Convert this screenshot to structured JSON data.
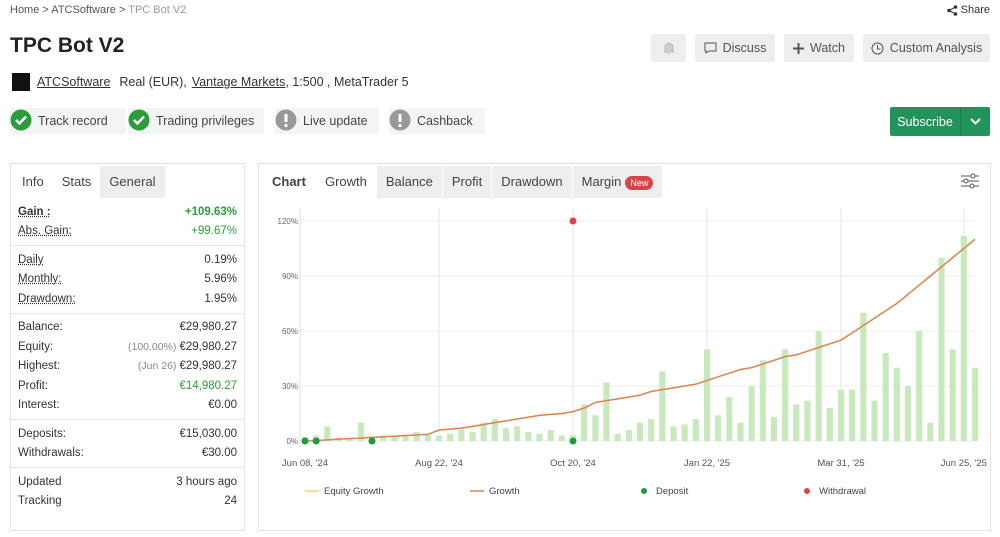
{
  "breadcrumb": [
    "Home",
    "ATCSoftware",
    "TPC Bot V2"
  ],
  "breadcrumb_separator": ">",
  "share": "Share",
  "title": "TPC Bot V2",
  "buttons": [
    "Discuss",
    "Watch",
    "Custom Analysis"
  ],
  "info_line": {
    "owner": "ATCSoftware",
    "account": "Real (EUR),",
    "broker": "Vantage Markets",
    "rest": ", 1:500 , MetaTrader 5"
  },
  "badges": [
    {
      "label": "Track record",
      "ok": true
    },
    {
      "label": "Trading privileges",
      "ok": true
    },
    {
      "label": "Live update",
      "ok": false
    },
    {
      "label": "Cashback",
      "ok": false
    }
  ],
  "subscribe": "Subscribe",
  "left_tabs": [
    "Info",
    "Stats",
    "General"
  ],
  "stats": [
    [
      {
        "label": "Gain :",
        "value": "+109.63%",
        "color": "#2a9d3a",
        "bold": true
      },
      {
        "label": "Abs. Gain:",
        "value": "+99.67%",
        "color": "#2a9d3a"
      }
    ],
    [
      {
        "label": "Daily",
        "value": "0.19%"
      },
      {
        "label": "Monthly:",
        "value": "5.96%"
      },
      {
        "label": "Drawdown:",
        "value": "1.95%"
      }
    ],
    [
      {
        "label": "Balance:",
        "value": "€29,980.27"
      },
      {
        "label": "Equity:",
        "note": "(100.00%)",
        "value": "€29,980.27"
      },
      {
        "label": "Highest:",
        "note": "(Jun 26)",
        "value": "€29,980.27"
      },
      {
        "label": "Profit:",
        "value": "€14,980.27",
        "color": "#2a9d3a"
      },
      {
        "label": "Interest:",
        "value": "€0.00"
      }
    ],
    [
      {
        "label": "Deposits:",
        "value": "€15,030.00"
      },
      {
        "label": "Withdrawals:",
        "value": "€30.00"
      }
    ],
    [
      {
        "label": "Updated",
        "value": "3 hours ago"
      },
      {
        "label": "Tracking",
        "value": "24"
      }
    ]
  ],
  "chart_tabs": [
    "Chart",
    "Growth",
    "Balance",
    "Profit",
    "Drawdown",
    "Margin"
  ],
  "new_badge": "New",
  "chart_data": {
    "type": "combo",
    "categories": [
      "Jun 08, '24",
      null,
      null,
      null,
      null,
      null,
      null,
      null,
      null,
      null,
      null,
      null,
      "Aug 22, '24",
      null,
      null,
      null,
      null,
      null,
      null,
      null,
      null,
      null,
      null,
      null,
      "Oct 20, '24",
      null,
      null,
      null,
      null,
      null,
      null,
      null,
      null,
      null,
      null,
      null,
      "Jan 22, '25",
      null,
      null,
      null,
      null,
      null,
      null,
      null,
      null,
      null,
      null,
      null,
      "Mar 31, '25",
      null,
      null,
      null,
      null,
      null,
      null,
      null,
      null,
      null,
      null,
      "Jun 25, '25",
      null
    ],
    "ylim": [
      0,
      120
    ],
    "yticks": [
      {
        "value": 0,
        "label": "0%"
      },
      {
        "value": 30,
        "label": "30%"
      },
      {
        "value": 60,
        "label": "60%"
      },
      {
        "value": 90,
        "label": "90%"
      },
      {
        "value": 120,
        "label": "120%"
      }
    ],
    "grid": true,
    "bars": {
      "color": "#c8e9bc",
      "values": [
        2,
        3,
        8,
        2,
        1,
        10,
        2,
        3,
        2,
        3,
        5,
        4,
        3,
        4,
        6,
        5,
        10,
        12,
        7,
        8,
        5,
        4,
        6,
        3,
        3,
        20,
        14,
        32,
        4,
        6,
        10,
        12,
        38,
        8,
        9,
        12,
        50,
        14,
        24,
        10,
        30,
        44,
        13,
        50,
        20,
        22,
        60,
        18,
        28,
        28,
        70,
        22,
        48,
        40,
        30,
        60,
        10,
        100,
        50,
        112,
        40
      ]
    },
    "series": [
      {
        "name": "Equity Growth",
        "color": "#f2d27a",
        "kind": "line",
        "values": [
          0,
          0.3,
          0.6,
          1,
          1.3,
          1.6,
          2,
          2.3,
          2.6,
          3,
          3.3,
          3.6,
          6,
          6.5,
          7,
          8,
          9,
          10,
          11,
          12,
          13,
          14,
          14.5,
          15,
          16,
          18,
          21,
          22,
          23,
          24,
          25,
          27,
          28,
          29,
          30,
          31,
          33,
          35,
          37,
          39,
          40,
          42,
          44,
          46,
          47,
          49,
          51,
          53,
          55,
          59,
          63,
          67,
          71,
          75,
          80,
          85,
          90,
          95,
          100,
          105,
          110
        ]
      },
      {
        "name": "Growth",
        "color": "#d9865a",
        "kind": "line",
        "values": [
          0,
          0.3,
          0.6,
          1,
          1.3,
          1.6,
          2,
          2.3,
          2.6,
          3,
          3.3,
          3.6,
          6,
          6.5,
          7,
          8,
          9,
          10,
          11,
          12,
          13,
          14,
          14.5,
          15,
          16,
          18,
          21,
          22,
          23,
          24,
          25,
          27,
          28,
          29,
          30,
          31,
          33,
          35,
          37,
          39,
          40,
          42,
          44,
          46,
          47,
          49,
          51,
          53,
          55,
          59,
          63,
          67,
          71,
          75,
          80,
          85,
          90,
          95,
          100,
          105,
          110
        ]
      },
      {
        "name": "Deposit",
        "color": "#1f9a3c",
        "kind": "dot",
        "values": [
          0,
          0,
          null,
          null,
          null,
          null,
          0,
          null,
          null,
          null,
          null,
          null,
          null,
          null,
          null,
          null,
          null,
          null,
          null,
          null,
          null,
          null,
          null,
          null,
          0,
          null,
          null,
          null,
          null,
          null,
          null,
          null,
          null,
          null,
          null,
          null,
          null,
          null,
          null,
          null,
          null,
          null,
          null,
          null,
          null,
          null,
          null,
          null,
          null,
          null,
          null,
          null,
          null,
          null,
          null,
          null,
          null,
          null,
          null,
          null,
          null
        ]
      },
      {
        "name": "Withdrawal",
        "color": "#d9434a",
        "kind": "dot",
        "values": [
          null,
          null,
          null,
          null,
          null,
          null,
          null,
          null,
          null,
          null,
          null,
          null,
          null,
          null,
          null,
          null,
          null,
          null,
          null,
          null,
          null,
          null,
          null,
          null,
          120,
          null,
          null,
          null,
          null,
          null,
          null,
          null,
          null,
          null,
          null,
          null,
          null,
          null,
          null,
          null,
          null,
          null,
          null,
          null,
          null,
          null,
          null,
          null,
          null,
          null,
          null,
          null,
          null,
          null,
          null,
          null,
          null,
          null,
          null,
          null,
          null
        ]
      }
    ]
  }
}
